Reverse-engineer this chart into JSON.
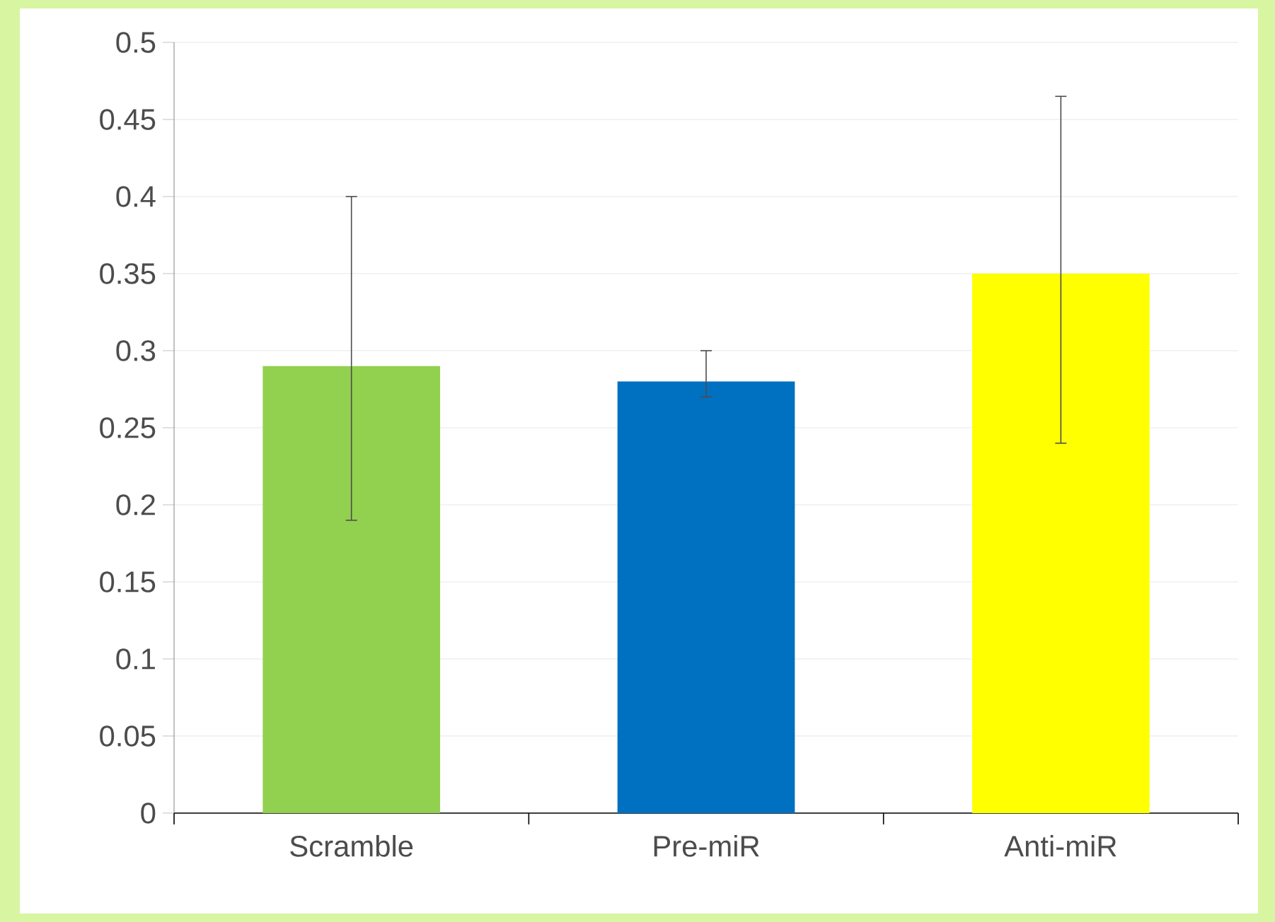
{
  "chart_data": {
    "type": "bar",
    "categories": [
      "Scramble",
      "Pre-miR",
      "Anti-miR"
    ],
    "values": [
      0.29,
      0.28,
      0.35
    ],
    "colors": [
      "#92d050",
      "#0070c0",
      "#ffff00"
    ],
    "errors": [
      [
        0.19,
        0.4
      ],
      [
        0.27,
        0.3
      ],
      [
        0.24,
        0.465
      ]
    ],
    "ylim": [
      0,
      0.5
    ],
    "yticks": [
      0,
      0.05,
      0.1,
      0.15,
      0.2,
      0.25,
      0.3,
      0.35,
      0.4,
      0.45,
      0.5
    ],
    "grid": "y"
  }
}
